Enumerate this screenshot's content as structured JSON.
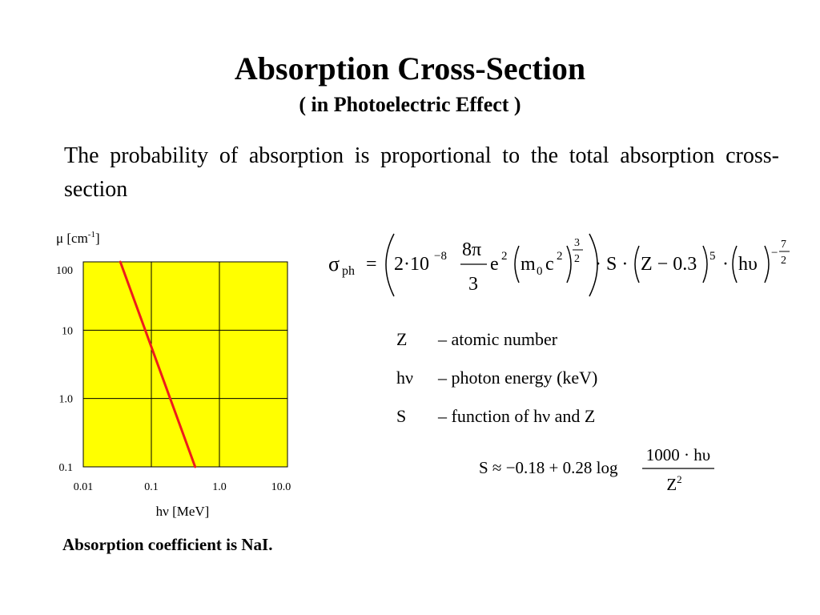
{
  "title": "Absorption Cross-Section",
  "subtitle": "( in Photoelectric Effect )",
  "paragraph": "The probability of absorption is proportional to the total absorption cross-section",
  "caption": "Absorption coefficient is NaI.",
  "chart_data": {
    "type": "line",
    "ylabel_main": "μ [cm",
    "ylabel_sup": "-1",
    "ylabel_end": "]",
    "xlabel": "hν [MeV]",
    "x_scale": "log",
    "y_scale": "log",
    "xlim": [
      0.01,
      10
    ],
    "ylim": [
      0.1,
      100
    ],
    "x_ticks": [
      {
        "v": 0.01,
        "label": "0.01"
      },
      {
        "v": 0.1,
        "label": "0.1"
      },
      {
        "v": 1,
        "label": "1.0"
      },
      {
        "v": 10,
        "label": "10.0"
      }
    ],
    "y_ticks": [
      {
        "v": 0.1,
        "label": "0.1"
      },
      {
        "v": 1,
        "label": "1.0"
      },
      {
        "v": 10,
        "label": "10"
      },
      {
        "v": 100,
        "label": "100"
      }
    ],
    "grid": true,
    "background": "#ffff00",
    "series": [
      {
        "color": "#ee1c1c",
        "x": [
          0.035,
          0.44
        ],
        "y": [
          100,
          0.1
        ]
      }
    ]
  },
  "legend": [
    {
      "symbol": "Z",
      "desc": "– atomic number"
    },
    {
      "symbol": "hν",
      "desc": "– photon energy (keV)"
    },
    {
      "symbol": "S",
      "desc": "– function of hν and Z"
    }
  ],
  "formula_main": {
    "sigma": "σ",
    "sigma_sub": "ph",
    "eq": "=",
    "coef": "2·10",
    "coef_exp": "−8",
    "frac_num": "8π",
    "frac_den": "3",
    "e": "e",
    "e_exp": "2",
    "m": "m",
    "m_sub": "0",
    "c": "c",
    "c_exp": "2",
    "pow_num": "3",
    "pow_den": "2",
    "dot_s": "· S ·",
    "z_term": "Z − 0.3",
    "z_exp": "5",
    "dot": "·",
    "hu": "hυ",
    "hu_exp_sign": "−",
    "hu_exp_num": "7",
    "hu_exp_den": "2"
  },
  "formula_s": {
    "lhs": "S ≈ −0.18 + 0.28 log",
    "num": "1000 · hυ",
    "den_base": "Z",
    "den_exp": "2"
  }
}
